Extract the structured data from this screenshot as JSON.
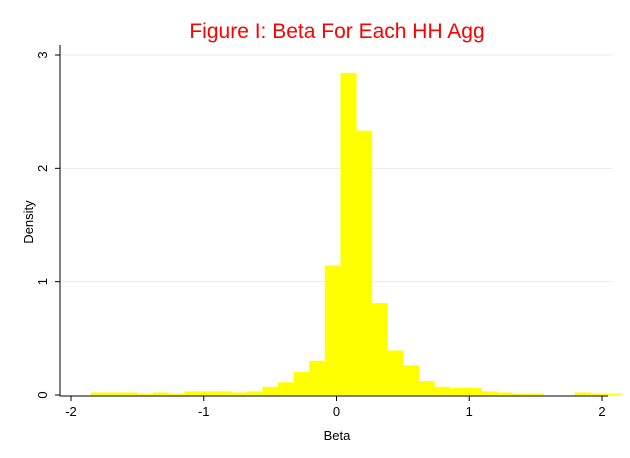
{
  "chart_data": {
    "type": "bar",
    "title": "Figure I:  Beta For Each HH Agg",
    "xlabel": "Beta",
    "ylabel": "Density",
    "xlim": [
      -2,
      2
    ],
    "ylim": [
      0,
      3
    ],
    "x_ticks": [
      -2,
      -1,
      0,
      1,
      2
    ],
    "x_tick_labels": [
      "-2",
      "-1",
      "0",
      "1",
      "2"
    ],
    "y_ticks": [
      0,
      1,
      2,
      3
    ],
    "y_tick_labels": [
      "0",
      "1",
      "2",
      "3"
    ],
    "grid": true,
    "legend": "none",
    "bin_width": 0.1176,
    "bin_start": -1.85,
    "values": [
      0.02,
      0.02,
      0.02,
      0.01,
      0.02,
      0.01,
      0.03,
      0.03,
      0.03,
      0.02,
      0.03,
      0.07,
      0.11,
      0.2,
      0.3,
      1.14,
      2.84,
      2.33,
      0.81,
      0.39,
      0.26,
      0.12,
      0.07,
      0.06,
      0.06,
      0.03,
      0.02,
      0.01,
      0.01,
      0.0,
      0.0,
      0.02,
      0.01,
      0.01
    ],
    "colors": {
      "bar": "#ffff00",
      "title": "#ff0000",
      "axis": "#000000",
      "grid": "#eaeaea",
      "background": "#ffffff"
    }
  }
}
